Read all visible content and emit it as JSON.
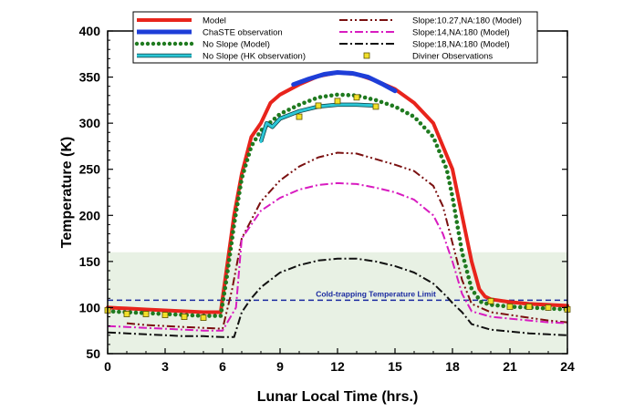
{
  "chart_data": {
    "type": "line",
    "xlabel": "Lunar Local Time (hrs.)",
    "ylabel": "Temperature (K)",
    "xlim": [
      0,
      24
    ],
    "ylim": [
      50,
      400
    ],
    "xticks": [
      0,
      3,
      6,
      9,
      12,
      15,
      18,
      21,
      24
    ],
    "yticks": [
      50,
      100,
      150,
      200,
      250,
      300,
      350,
      400
    ],
    "grid": false,
    "legend_position": "top",
    "shaded_region": {
      "y_from": 50,
      "y_to": 160,
      "color": "#e8f1e4"
    },
    "annotation": {
      "text": "Cold-trapping Temperature Limit",
      "y": 108,
      "x": 14,
      "color": "#1a2aa0"
    },
    "series": [
      {
        "name": "Model",
        "color": "#e8241c",
        "style": "solid",
        "width": 4,
        "points": [
          [
            0,
            100
          ],
          [
            1,
            99
          ],
          [
            2,
            98
          ],
          [
            3,
            97
          ],
          [
            4,
            96
          ],
          [
            5,
            95
          ],
          [
            5.9,
            95
          ],
          [
            6.2,
            140
          ],
          [
            6.6,
            200
          ],
          [
            7,
            245
          ],
          [
            7.5,
            285
          ],
          [
            8,
            300
          ],
          [
            8.5,
            322
          ],
          [
            9,
            331
          ],
          [
            10,
            342
          ],
          [
            11,
            351
          ],
          [
            12,
            355
          ],
          [
            13,
            353
          ],
          [
            14,
            346
          ],
          [
            15,
            337
          ],
          [
            16,
            322
          ],
          [
            17,
            300
          ],
          [
            18,
            250
          ],
          [
            18.5,
            200
          ],
          [
            19,
            150
          ],
          [
            19.4,
            120
          ],
          [
            19.7,
            112
          ],
          [
            20,
            109
          ],
          [
            21,
            106
          ],
          [
            22,
            104
          ],
          [
            23,
            103
          ],
          [
            24,
            102
          ]
        ]
      },
      {
        "name": "ChaSTE observation",
        "color": "#1e3ed8",
        "style": "solid",
        "width": 5,
        "points": [
          [
            9.7,
            342
          ],
          [
            10.5,
            348
          ],
          [
            11.3,
            353
          ],
          [
            12,
            355
          ],
          [
            12.8,
            354
          ],
          [
            13.6,
            350
          ],
          [
            14.3,
            343
          ],
          [
            15,
            335
          ]
        ]
      },
      {
        "name": "No Slope (Model)",
        "color": "#1f7a1f",
        "style": "dotted",
        "width": 4,
        "points": [
          [
            0,
            96
          ],
          [
            1,
            95
          ],
          [
            2,
            94
          ],
          [
            3,
            93
          ],
          [
            4,
            92
          ],
          [
            5,
            91
          ],
          [
            5.9,
            91
          ],
          [
            6.2,
            130
          ],
          [
            6.6,
            190
          ],
          [
            7,
            240
          ],
          [
            7.5,
            275
          ],
          [
            8,
            292
          ],
          [
            9,
            310
          ],
          [
            10,
            320
          ],
          [
            11,
            328
          ],
          [
            12,
            331
          ],
          [
            13,
            330
          ],
          [
            14,
            325
          ],
          [
            15,
            318
          ],
          [
            16,
            307
          ],
          [
            17,
            285
          ],
          [
            17.7,
            250
          ],
          [
            18,
            220
          ],
          [
            18.5,
            160
          ],
          [
            19,
            120
          ],
          [
            19.5,
            106
          ],
          [
            20,
            103
          ],
          [
            21,
            101
          ],
          [
            22,
            100
          ],
          [
            23,
            99
          ],
          [
            24,
            98
          ]
        ]
      },
      {
        "name": "No  Slope (HK observation)",
        "color": "#2cc7d6",
        "style": "solid",
        "width": 3,
        "points": [
          [
            8,
            280
          ],
          [
            8.3,
            300
          ],
          [
            8.6,
            296
          ],
          [
            9,
            305
          ],
          [
            10,
            313
          ],
          [
            11,
            318
          ],
          [
            12,
            320
          ],
          [
            13,
            320
          ],
          [
            14,
            319
          ]
        ]
      },
      {
        "name": "Slope:10.27,NA:180 (Model)",
        "color": "#7a1010",
        "style": "dashdotdot",
        "width": 2,
        "points": [
          [
            1,
            83
          ],
          [
            2,
            81
          ],
          [
            3,
            80
          ],
          [
            4,
            79
          ],
          [
            5,
            78
          ],
          [
            6,
            77
          ],
          [
            6.5,
            120
          ],
          [
            7,
            175
          ],
          [
            8,
            215
          ],
          [
            9,
            238
          ],
          [
            10,
            253
          ],
          [
            11,
            263
          ],
          [
            12,
            268
          ],
          [
            13,
            267
          ],
          [
            14,
            261
          ],
          [
            15,
            255
          ],
          [
            16,
            248
          ],
          [
            17,
            232
          ],
          [
            17.5,
            210
          ],
          [
            18,
            170
          ],
          [
            18.5,
            130
          ],
          [
            19,
            104
          ],
          [
            20,
            95
          ],
          [
            21,
            92
          ],
          [
            22,
            89
          ],
          [
            23,
            86
          ],
          [
            24,
            84
          ]
        ]
      },
      {
        "name": "Slope:14,NA:180 (Model)",
        "color": "#d81cc0",
        "style": "dashdot",
        "width": 2,
        "points": [
          [
            0,
            80
          ],
          [
            1,
            79
          ],
          [
            2,
            78
          ],
          [
            3,
            77
          ],
          [
            4,
            76
          ],
          [
            5,
            75
          ],
          [
            6,
            75
          ],
          [
            6.7,
            100
          ],
          [
            7,
            175
          ],
          [
            8,
            205
          ],
          [
            9,
            219
          ],
          [
            10,
            228
          ],
          [
            11,
            233
          ],
          [
            12,
            235
          ],
          [
            13,
            234
          ],
          [
            14,
            230
          ],
          [
            15,
            225
          ],
          [
            16,
            217
          ],
          [
            17,
            200
          ],
          [
            17.5,
            180
          ],
          [
            18,
            150
          ],
          [
            18.5,
            115
          ],
          [
            19,
            96
          ],
          [
            20,
            90
          ],
          [
            21,
            88
          ],
          [
            22,
            86
          ],
          [
            23,
            84
          ],
          [
            24,
            83
          ]
        ]
      },
      {
        "name": "Slope:18,NA:180 (Model)",
        "color": "#111111",
        "style": "dashdot",
        "width": 2,
        "points": [
          [
            0,
            73
          ],
          [
            1,
            72
          ],
          [
            2,
            71
          ],
          [
            3,
            70
          ],
          [
            4,
            69
          ],
          [
            5,
            69
          ],
          [
            6,
            68
          ],
          [
            6.6,
            68
          ],
          [
            7,
            95
          ],
          [
            7.5,
            110
          ],
          [
            8,
            122
          ],
          [
            9,
            138
          ],
          [
            10,
            146
          ],
          [
            11,
            151
          ],
          [
            12,
            153
          ],
          [
            13,
            153
          ],
          [
            14,
            150
          ],
          [
            15,
            145
          ],
          [
            16,
            138
          ],
          [
            17,
            126
          ],
          [
            17.7,
            112
          ],
          [
            18,
            105
          ],
          [
            18.5,
            95
          ],
          [
            19,
            82
          ],
          [
            20,
            76
          ],
          [
            21,
            74
          ],
          [
            22,
            72
          ],
          [
            23,
            71
          ],
          [
            24,
            70
          ]
        ]
      },
      {
        "name": "Diviner Observations",
        "color": "#f2e02a",
        "style": "marker",
        "points": [
          [
            0,
            97
          ],
          [
            1,
            93
          ],
          [
            2,
            93
          ],
          [
            3,
            92
          ],
          [
            4,
            90
          ],
          [
            5,
            89
          ],
          [
            10,
            307
          ],
          [
            11,
            319
          ],
          [
            12,
            324
          ],
          [
            13,
            328
          ],
          [
            14,
            318
          ],
          [
            20,
            107
          ],
          [
            21,
            101
          ],
          [
            22,
            101
          ],
          [
            23,
            100
          ],
          [
            24,
            98
          ]
        ]
      }
    ]
  }
}
